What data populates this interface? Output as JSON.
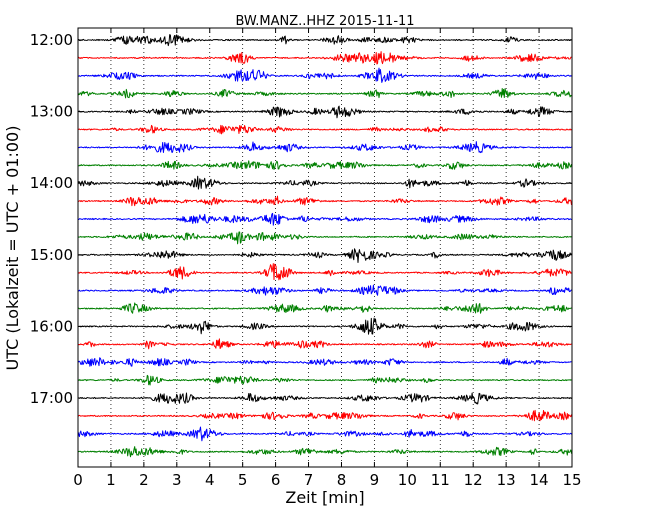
{
  "chart_data": {
    "type": "line",
    "title": "BW.MANZ..HHZ 2015-11-11",
    "xlabel": "Zeit  [min]",
    "ylabel": "UTC (Lokalzeit = UTC + 01:00)",
    "xlim": [
      0,
      15
    ],
    "x_ticks": [
      "0",
      "1",
      "2",
      "3",
      "4",
      "5",
      "6",
      "7",
      "8",
      "9",
      "10",
      "11",
      "12",
      "13",
      "14",
      "15"
    ],
    "y_ticks": [
      "12:00",
      "13:00",
      "14:00",
      "15:00",
      "16:00",
      "17:00"
    ],
    "trace_start": "12:00",
    "trace_interval_min": 15,
    "trace_count": 24,
    "trace_colors": [
      "#000000",
      "#ff0000",
      "#0000ff",
      "#008000"
    ],
    "grid": "vertical-dotted",
    "frame_color": "#000000"
  }
}
